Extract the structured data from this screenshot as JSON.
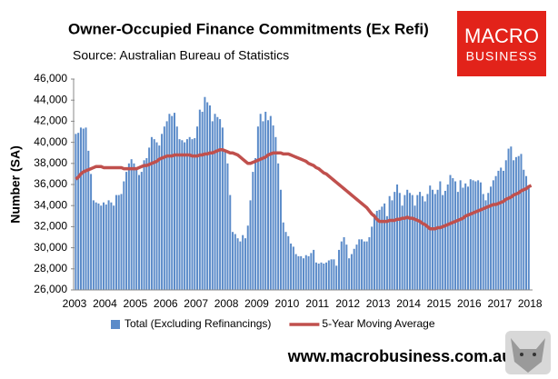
{
  "header": {
    "title": "Owner-Occupied Finance Commitments (Ex Refi)",
    "subtitle": "Source: Australian  Bureau of Statistics"
  },
  "logo": {
    "line1": "MACRO",
    "line2": "BUSINESS"
  },
  "footer": "www.macrobusiness.com.au",
  "chart_data": {
    "type": "bar",
    "y_label": "Number (SA)",
    "legend": "bottom",
    "categories": [
      "2003",
      null,
      null,
      null,
      null,
      null,
      null,
      null,
      null,
      null,
      null,
      null,
      "2004",
      null,
      null,
      null,
      null,
      null,
      null,
      null,
      null,
      null,
      null,
      null,
      "2005",
      null,
      null,
      null,
      null,
      null,
      null,
      null,
      null,
      null,
      null,
      null,
      "2006",
      null,
      null,
      null,
      null,
      null,
      null,
      null,
      null,
      null,
      null,
      null,
      "2007",
      null,
      null,
      null,
      null,
      null,
      null,
      null,
      null,
      null,
      null,
      null,
      "2008",
      null,
      null,
      null,
      null,
      null,
      null,
      null,
      null,
      null,
      null,
      null,
      "2009",
      null,
      null,
      null,
      null,
      null,
      null,
      null,
      null,
      null,
      null,
      null,
      "2010",
      null,
      null,
      null,
      null,
      null,
      null,
      null,
      null,
      null,
      null,
      null,
      "2011",
      null,
      null,
      null,
      null,
      null,
      null,
      null,
      null,
      null,
      null,
      null,
      "2012",
      null,
      null,
      null,
      null,
      null,
      null,
      null,
      null,
      null,
      null,
      null,
      "2013",
      null,
      null,
      null,
      null,
      null,
      null,
      null,
      null,
      null,
      null,
      null,
      "2014",
      null,
      null,
      null,
      null,
      null,
      null,
      null,
      null,
      null,
      null,
      null,
      "2015",
      null,
      null,
      null,
      null,
      null,
      null,
      null,
      null,
      null,
      null,
      null,
      "2016",
      null,
      null,
      null,
      null,
      null,
      null,
      null,
      null,
      null,
      null,
      null,
      "2017",
      null,
      null,
      null,
      null,
      null,
      null,
      null,
      null,
      null,
      null,
      null,
      "2018"
    ],
    "series": [
      {
        "name": "Total (Excluding Refinancings)",
        "type": "bar",
        "color": "#5b8bc9",
        "values": [
          40800,
          40900,
          41400,
          41300,
          41400,
          39200,
          37000,
          34500,
          34300,
          34200,
          34000,
          34300,
          34100,
          34500,
          34300,
          34000,
          35000,
          35000,
          35100,
          36300,
          37200,
          38000,
          38400,
          38000,
          37500,
          36900,
          37200,
          38300,
          38500,
          39500,
          40500,
          40300,
          40000,
          39700,
          40800,
          41500,
          42000,
          42700,
          42500,
          42800,
          41500,
          40300,
          40200,
          40000,
          40300,
          40500,
          40300,
          40400,
          41500,
          43100,
          42900,
          44300,
          43800,
          43500,
          42000,
          42700,
          42400,
          42200,
          41400,
          39100,
          38000,
          35000,
          31500,
          31300,
          30900,
          30600,
          31200,
          30900,
          32100,
          34500,
          37200,
          38500,
          41500,
          42700,
          42000,
          42900,
          42100,
          42500,
          41600,
          40500,
          38000,
          35500,
          32400,
          31500,
          31100,
          30400,
          30100,
          29400,
          29200,
          29200,
          29000,
          29300,
          29200,
          29500,
          29800,
          28600,
          28500,
          28600,
          28500,
          28600,
          28800,
          28900,
          28900,
          28300,
          29800,
          30600,
          31000,
          30300,
          29000,
          29400,
          29900,
          30300,
          30800,
          30800,
          30600,
          30600,
          31000,
          32000,
          33200,
          33500,
          33600,
          33900,
          34200,
          33000,
          34900,
          34500,
          35300,
          36000,
          35200,
          34000,
          35000,
          35500,
          35200,
          35000,
          34000,
          35000,
          35300,
          34900,
          34400,
          35100,
          35900,
          35500,
          35100,
          35500,
          36300,
          35000,
          35400,
          36000,
          36900,
          36600,
          36300,
          35300,
          36400,
          35700,
          36100,
          35800,
          36500,
          36400,
          36300,
          36400,
          36200,
          35100,
          34500,
          35200,
          35800,
          36400,
          36800,
          37300,
          37600,
          37300,
          38300,
          39400,
          39600,
          38300,
          38600,
          38700,
          38900,
          37400,
          36800,
          35800,
          null
        ]
      },
      {
        "name": "5-Year Moving Average",
        "type": "line",
        "color": "#c0504d",
        "values": [
          36500,
          36700,
          37000,
          37200,
          37300,
          37400,
          37500,
          37600,
          37700,
          37700,
          37700,
          37600,
          37600,
          37600,
          37600,
          37600,
          37600,
          37600,
          37600,
          37500,
          37500,
          37500,
          37500,
          37500,
          37500,
          37600,
          37700,
          37800,
          37800,
          37900,
          38000,
          38100,
          38200,
          38400,
          38500,
          38600,
          38700,
          38700,
          38700,
          38800,
          38800,
          38800,
          38800,
          38800,
          38800,
          38800,
          38700,
          38700,
          38700,
          38800,
          38800,
          38900,
          38900,
          39000,
          39000,
          39100,
          39200,
          39300,
          39300,
          39200,
          39100,
          39000,
          39000,
          38900,
          38800,
          38600,
          38400,
          38200,
          38000,
          38000,
          38100,
          38200,
          38300,
          38400,
          38500,
          38600,
          38800,
          38900,
          39000,
          39000,
          39000,
          39000,
          38900,
          38900,
          38900,
          38800,
          38700,
          38600,
          38500,
          38400,
          38300,
          38200,
          38000,
          37900,
          37800,
          37600,
          37500,
          37300,
          37100,
          37000,
          36800,
          36600,
          36400,
          36200,
          36000,
          35800,
          35600,
          35400,
          35200,
          35000,
          34800,
          34600,
          34400,
          34200,
          34000,
          33800,
          33500,
          33200,
          33000,
          32700,
          32500,
          32500,
          32500,
          32500,
          32600,
          32600,
          32600,
          32700,
          32700,
          32800,
          32800,
          32900,
          32800,
          32800,
          32700,
          32600,
          32500,
          32300,
          32200,
          32000,
          31800,
          31800,
          31800,
          31900,
          31900,
          32000,
          32100,
          32200,
          32300,
          32400,
          32500,
          32600,
          32700,
          32800,
          33000,
          33100,
          33200,
          33300,
          33400,
          33500,
          33600,
          33700,
          33800,
          33900,
          34000,
          34100,
          34100,
          34200,
          34300,
          34400,
          34600,
          34700,
          34800,
          35000,
          35100,
          35200,
          35400,
          35500,
          35600,
          35800,
          35900
        ]
      }
    ],
    "ylim": [
      26000,
      46000
    ],
    "yticks": [
      {
        "value": 26000,
        "label": "26,000"
      },
      {
        "value": 28000,
        "label": "28,000"
      },
      {
        "value": 30000,
        "label": "30,000"
      },
      {
        "value": 32000,
        "label": "32,000"
      },
      {
        "value": 34000,
        "label": "34,000"
      },
      {
        "value": 36000,
        "label": "36,000"
      },
      {
        "value": 38000,
        "label": "38,000"
      },
      {
        "value": 40000,
        "label": "40,000"
      },
      {
        "value": 42000,
        "label": "42,000"
      },
      {
        "value": 44000,
        "label": "44,000"
      },
      {
        "value": 46000,
        "label": "46,000"
      }
    ]
  }
}
